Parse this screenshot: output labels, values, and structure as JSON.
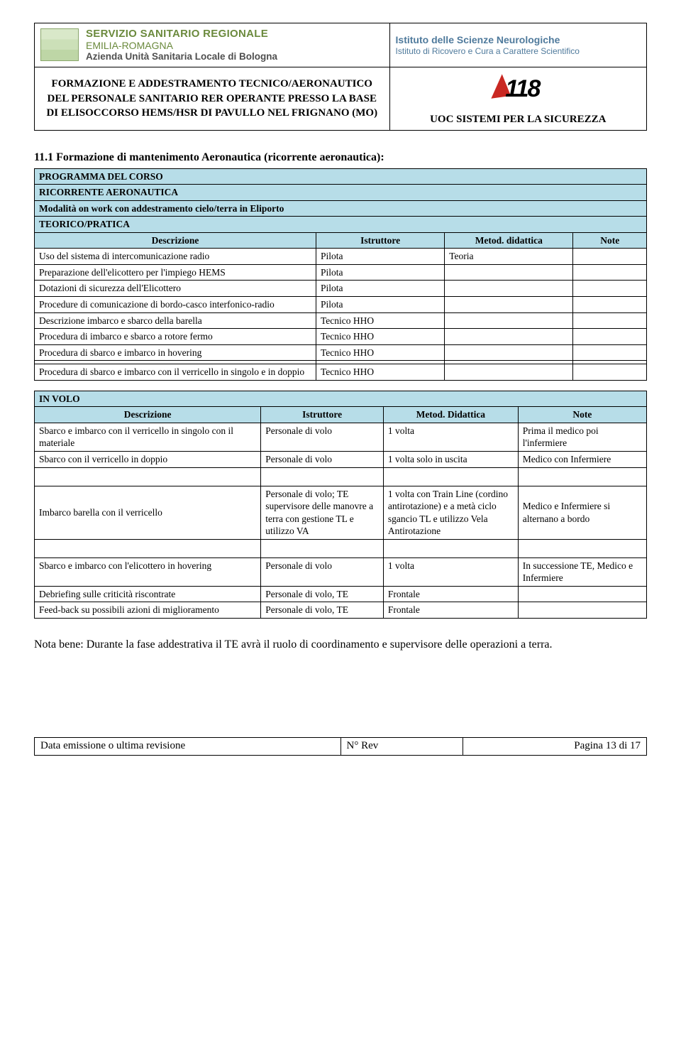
{
  "colors": {
    "band_bg": "#b7dde8",
    "border": "#000000",
    "ssr_green": "#6b8a3d",
    "ssr_gray": "#4f4f4f",
    "isn_blue": "#4f7a9c",
    "logo118_red": "#c92822"
  },
  "header": {
    "ssr": {
      "line1": "SERVIZIO SANITARIO REGIONALE",
      "line2": "EMILIA-ROMAGNA",
      "line3": "Azienda Unità Sanitaria Locale di Bologna"
    },
    "isn": {
      "line1": "Istituto delle Scienze Neurologiche",
      "line2": "Istituto di Ricovero e Cura a Carattere Scientifico"
    },
    "left": "FORMAZIONE E ADDESTRAMENTO TECNICO/AERONAUTICO\nDEL PERSONALE SANITARIO RER OPERANTE PRESSO LA BASE DI ELISOCCORSO HEMS/HSR DI PAVULLO NEL FRIGNANO (MO)",
    "right": "UOC SISTEMI PER LA SICUREZZA",
    "logo118_num": "118"
  },
  "section_title": "11.1 Formazione di mantenimento Aeronautica (ricorrente aeronautica):",
  "prog1": {
    "band1": "PROGRAMMA DEL CORSO",
    "band2": "RICORRENTE AERONAUTICA",
    "band3": "Modalità on work con addestramento cielo/terra in Eliporto",
    "band4": "TEORICO/PRATICA",
    "head": {
      "c1": "Descrizione",
      "c2": "Istruttore",
      "c3": "Metod. didattica",
      "c4": "Note"
    },
    "rows": [
      {
        "c1": "Uso del sistema di intercomunicazione radio",
        "c2": "Pilota",
        "c3": "Teoria",
        "c4": ""
      },
      {
        "c1": "Preparazione dell'elicottero per l'impiego HEMS",
        "c2": "Pilota",
        "c3": "",
        "c4": ""
      },
      {
        "c1": "Dotazioni di sicurezza dell'Elicottero",
        "c2": "Pilota",
        "c3": "",
        "c4": ""
      },
      {
        "c1": "Procedure di comunicazione di bordo-casco interfonico-radio",
        "c2": "Pilota",
        "c3": "",
        "c4": ""
      },
      {
        "c1": "Descrizione imbarco e sbarco della barella",
        "c2": "Tecnico HHO",
        "c3": "",
        "c4": ""
      },
      {
        "c1": "Procedura di imbarco e sbarco a rotore fermo",
        "c2": "Tecnico HHO",
        "c3": "",
        "c4": ""
      },
      {
        "c1": "Procedura di sbarco e imbarco in hovering",
        "c2": "Tecnico HHO",
        "c3": "",
        "c4": ""
      }
    ],
    "extra_row": {
      "c1": "Procedura di sbarco e imbarco con il verricello in singolo e in doppio",
      "c2": "Tecnico HHO",
      "c3": "",
      "c4": ""
    }
  },
  "prog2": {
    "band": "IN VOLO",
    "head": {
      "c1": "Descrizione",
      "c2": "Istruttore",
      "c3": "Metod. Didattica",
      "c4": "Note"
    },
    "rows": [
      {
        "c1": "Sbarco e imbarco con il verricello in singolo con il materiale",
        "c2": "Personale di volo",
        "c3": "1 volta",
        "c4": "Prima il medico poi l'infermiere"
      },
      {
        "c1": "Sbarco con il verricello in doppio",
        "c2": "Personale di volo",
        "c3": "1 volta solo in uscita",
        "c4": "Medico con Infermiere"
      }
    ],
    "row_big": {
      "c1": "Imbarco barella con il verricello",
      "c2": "Personale di volo; TE supervisore delle manovre a terra con gestione TL e utilizzo VA",
      "c3": "1 volta con Train Line (cordino antirotazione) e a metà ciclo sgancio TL e utilizzo Vela Antirotazione",
      "c4": "Medico e Infermiere si alternano a bordo"
    },
    "rows_after": [
      {
        "c1": "Sbarco e imbarco con l'elicottero in hovering",
        "c2": "Personale di volo",
        "c3": "1 volta",
        "c4": "In successione TE, Medico e Infermiere"
      },
      {
        "c1": "Debriefing sulle criticità riscontrate",
        "c2": "Personale di volo, TE",
        "c3": "Frontale",
        "c4": ""
      },
      {
        "c1": "Feed-back su possibili azioni di miglioramento",
        "c2": "Personale di volo, TE",
        "c3": "Frontale",
        "c4": ""
      }
    ]
  },
  "note_para": "Nota bene: Durante la fase addestrativa il TE avrà il ruolo di coordinamento e supervisore delle operazioni a terra.",
  "footer": {
    "c1": "Data emissione o ultima revisione",
    "c2": "N° Rev",
    "c3": "Pagina 13 di 17"
  }
}
